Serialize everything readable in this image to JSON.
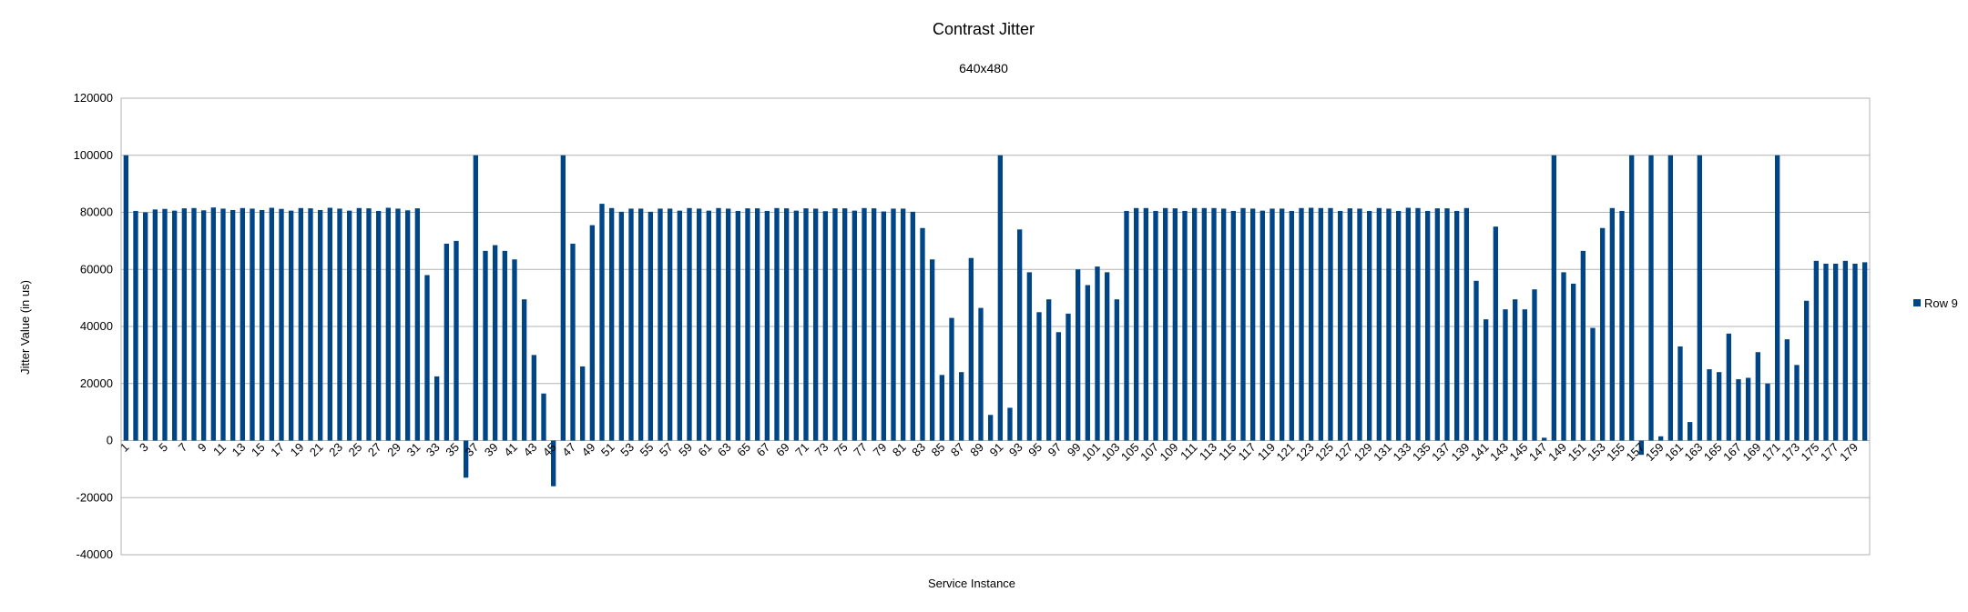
{
  "chart_data": {
    "type": "bar",
    "title": "Contrast Jitter",
    "subtitle": "640x480",
    "xlabel": "Service Instance",
    "ylabel": "Jitter Value (in us)",
    "ylim": [
      -40000,
      120000
    ],
    "yticks": [
      120000,
      100000,
      80000,
      60000,
      40000,
      20000,
      0,
      -20000,
      -40000
    ],
    "ytick_labels": [
      "120000",
      "100000",
      "80000",
      "60000",
      "40000",
      "20000",
      "0",
      "-20000",
      "-40000"
    ],
    "grid": true,
    "legend_position": "right",
    "categories": [
      "1",
      "2",
      "3",
      "4",
      "5",
      "6",
      "7",
      "8",
      "9",
      "10",
      "11",
      "12",
      "13",
      "14",
      "15",
      "16",
      "17",
      "18",
      "19",
      "20",
      "21",
      "22",
      "23",
      "24",
      "25",
      "26",
      "27",
      "28",
      "29",
      "30",
      "31",
      "32",
      "33",
      "34",
      "35",
      "36",
      "37",
      "38",
      "39",
      "40",
      "41",
      "42",
      "43",
      "44",
      "45",
      "46",
      "47",
      "48",
      "49",
      "50",
      "51",
      "52",
      "53",
      "54",
      "55",
      "56",
      "57",
      "58",
      "59",
      "60",
      "61",
      "62",
      "63",
      "64",
      "65",
      "66",
      "67",
      "68",
      "69",
      "70",
      "71",
      "72",
      "73",
      "74",
      "75",
      "76",
      "77",
      "78",
      "79",
      "80",
      "81",
      "82",
      "83",
      "84",
      "85",
      "86",
      "87",
      "88",
      "89",
      "90",
      "91",
      "92",
      "93",
      "94",
      "95",
      "96",
      "97",
      "98",
      "99",
      "100",
      "101",
      "102",
      "103",
      "104",
      "105",
      "106",
      "107",
      "108",
      "109",
      "110",
      "111",
      "112",
      "113",
      "114",
      "115",
      "116",
      "117",
      "118",
      "119",
      "120",
      "121",
      "122",
      "123",
      "124",
      "125",
      "126",
      "127",
      "128",
      "129",
      "130",
      "131",
      "132",
      "133",
      "134",
      "135",
      "136",
      "137",
      "138",
      "139",
      "140",
      "141",
      "142",
      "143",
      "144",
      "145",
      "146",
      "147",
      "148",
      "149",
      "150",
      "151",
      "152",
      "153",
      "154",
      "155",
      "156",
      "157",
      "158",
      "159",
      "160",
      "161",
      "162",
      "163",
      "164",
      "165",
      "166",
      "167",
      "168",
      "169",
      "170",
      "171",
      "172",
      "173",
      "174",
      "175",
      "176",
      "177",
      "178",
      "179",
      "180"
    ],
    "series": [
      {
        "name": "Row 9",
        "color": "#004586",
        "values": [
          100000,
          80500,
          80000,
          81000,
          81200,
          80600,
          81400,
          81500,
          80700,
          81700,
          81300,
          80800,
          81500,
          81300,
          80800,
          81600,
          81200,
          80600,
          81500,
          81400,
          80800,
          81600,
          81300,
          80600,
          81500,
          81400,
          80500,
          81600,
          81300,
          80700,
          81400,
          58000,
          22500,
          69000,
          70000,
          -13000,
          100000,
          66500,
          68500,
          66500,
          63500,
          49500,
          30000,
          16500,
          -16000,
          100000,
          69000,
          26000,
          75500,
          83000,
          81500,
          80200,
          81300,
          81300,
          80200,
          81300,
          81300,
          80600,
          81500,
          81300,
          80600,
          81500,
          81300,
          80500,
          81400,
          81400,
          80500,
          81500,
          81400,
          80600,
          81400,
          81300,
          80400,
          81400,
          81400,
          80600,
          81500,
          81400,
          80300,
          81300,
          81300,
          80200,
          74500,
          63500,
          23000,
          43000,
          24000,
          64000,
          46500,
          9000,
          100000,
          11500,
          74000,
          59000,
          45000,
          49500,
          38000,
          44500,
          60000,
          54500,
          61000,
          59000,
          49500,
          80500,
          81500,
          81500,
          80500,
          81500,
          81400,
          80500,
          81500,
          81500,
          81500,
          81300,
          80500,
          81500,
          81300,
          80600,
          81300,
          81300,
          80500,
          81500,
          81600,
          81500,
          81500,
          80500,
          81400,
          81300,
          80500,
          81500,
          81300,
          80500,
          81600,
          81500,
          80500,
          81400,
          81400,
          80500,
          81500,
          56000,
          42500,
          75000,
          46000,
          49500,
          46000,
          53000,
          1000,
          100000,
          59000,
          55000,
          66500,
          39500,
          74500,
          81500,
          80500,
          100000,
          -5000,
          100000,
          1500,
          100000,
          33000,
          6500,
          100000,
          25000,
          24000,
          37500,
          21500,
          22000,
          31000,
          20000,
          100000,
          35500,
          26500,
          49000,
          63000,
          62000,
          62000,
          63000,
          62000,
          62500
        ]
      }
    ]
  }
}
